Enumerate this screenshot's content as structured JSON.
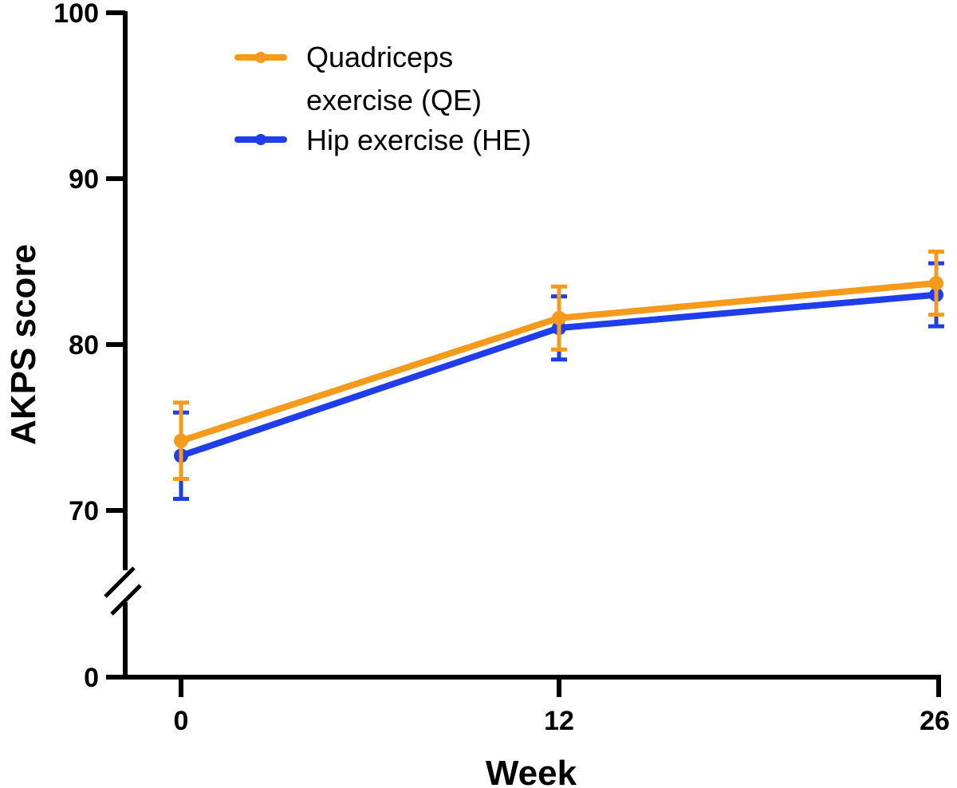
{
  "chart_data": {
    "type": "line",
    "xlabel": "Week",
    "ylabel": "AKPS score",
    "x": [
      0,
      12,
      26
    ],
    "x_tick_labels": [
      "0",
      "12",
      "26"
    ],
    "y_tick_labels": [
      "100",
      "90",
      "80",
      "70",
      "0"
    ],
    "y_axis_break": true,
    "ylim": [
      0,
      100
    ],
    "grid": false,
    "legend_position": "top-left",
    "series": [
      {
        "name_lines": [
          "Quadriceps",
          "exercise (QE)"
        ],
        "color": "#F59A1B",
        "values": [
          74.2,
          81.6,
          83.7
        ],
        "error": [
          2.3,
          1.9,
          1.9
        ]
      },
      {
        "name_lines": [
          "Hip exercise (HE)"
        ],
        "color": "#1F3DEB",
        "values": [
          73.3,
          81.0,
          83.0
        ],
        "error": [
          2.6,
          1.9,
          1.9
        ]
      }
    ]
  }
}
